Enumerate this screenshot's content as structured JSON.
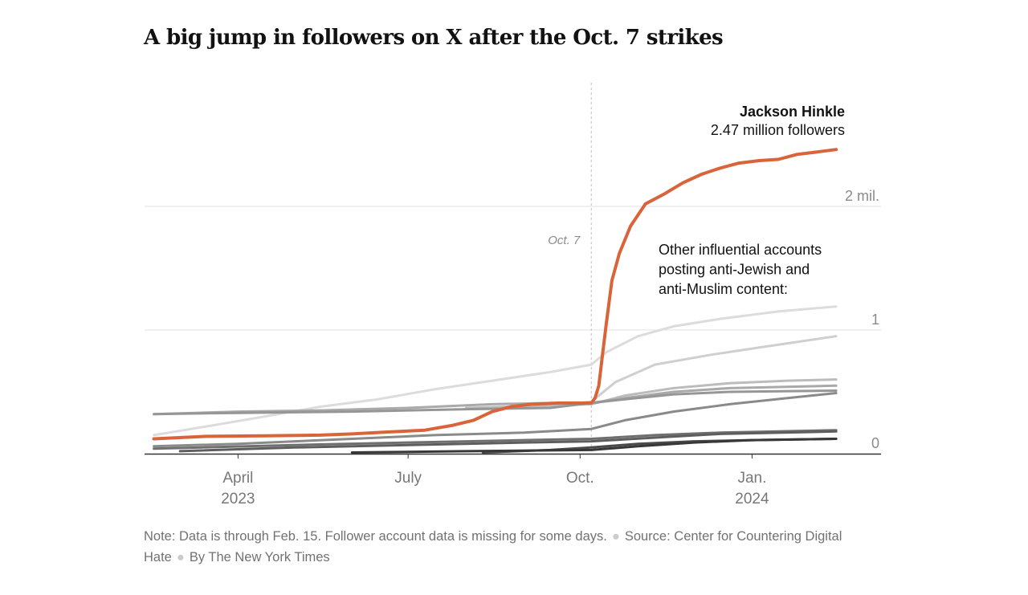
{
  "title": "A big jump in followers on X after the Oct. 7 strikes",
  "footnote": {
    "note": "Note: Data is through Feb. 15. Follower account data is missing for some days.",
    "source": "Source: Center for Countering Digital Hate",
    "credit": "By The New York Times"
  },
  "chart_data": {
    "type": "line",
    "x_domain": [
      "2023-02-10",
      "2024-03-10"
    ],
    "ylim": [
      0,
      2.6
    ],
    "y_unit": "million followers",
    "y_ticks": [
      {
        "value": 0,
        "label": "0"
      },
      {
        "value": 1,
        "label": "1"
      },
      {
        "value": 2,
        "label": "2 mil."
      }
    ],
    "x_ticks": [
      {
        "date": "2023-04-01",
        "label": "April",
        "sublabel": "2023"
      },
      {
        "date": "2023-07-01",
        "label": "July",
        "sublabel": ""
      },
      {
        "date": "2023-10-01",
        "label": "Oct.",
        "sublabel": ""
      },
      {
        "date": "2024-01-01",
        "label": "Jan.",
        "sublabel": "2024"
      }
    ],
    "event_marker": {
      "date": "2023-10-07",
      "label": "Oct. 7"
    },
    "highlight": {
      "name": "Jackson Hinkle",
      "value_label": "2.47 million followers",
      "color": "#d9643a",
      "points": [
        [
          "2023-02-15",
          0.12
        ],
        [
          "2023-03-15",
          0.14
        ],
        [
          "2023-04-15",
          0.145
        ],
        [
          "2023-05-15",
          0.15
        ],
        [
          "2023-06-01",
          0.16
        ],
        [
          "2023-06-20",
          0.175
        ],
        [
          "2023-07-10",
          0.19
        ],
        [
          "2023-07-25",
          0.23
        ],
        [
          "2023-08-05",
          0.27
        ],
        [
          "2023-08-15",
          0.34
        ],
        [
          "2023-08-25",
          0.38
        ],
        [
          "2023-09-05",
          0.4
        ],
        [
          "2023-09-20",
          0.41
        ],
        [
          "2023-10-07",
          0.41
        ],
        [
          "2023-10-09",
          0.45
        ],
        [
          "2023-10-11",
          0.55
        ],
        [
          "2023-10-13",
          0.8
        ],
        [
          "2023-10-15",
          1.05
        ],
        [
          "2023-10-18",
          1.4
        ],
        [
          "2023-10-22",
          1.62
        ],
        [
          "2023-10-28",
          1.84
        ],
        [
          "2023-11-05",
          2.02
        ],
        [
          "2023-11-15",
          2.1
        ],
        [
          "2023-11-25",
          2.19
        ],
        [
          "2023-12-05",
          2.26
        ],
        [
          "2023-12-15",
          2.31
        ],
        [
          "2023-12-25",
          2.35
        ],
        [
          "2024-01-05",
          2.37
        ],
        [
          "2024-01-15",
          2.38
        ],
        [
          "2024-01-25",
          2.42
        ],
        [
          "2024-02-05",
          2.44
        ],
        [
          "2024-02-15",
          2.46
        ]
      ]
    },
    "others_label": "Other influential accounts posting anti-Jewish and anti-Muslim content:",
    "series": [
      {
        "color": "#dcdcdc",
        "points": [
          [
            "2023-02-15",
            0.15
          ],
          [
            "2023-03-15",
            0.22
          ],
          [
            "2023-04-15",
            0.3
          ],
          [
            "2023-05-15",
            0.38
          ],
          [
            "2023-06-15",
            0.44
          ],
          [
            "2023-07-15",
            0.52
          ],
          [
            "2023-08-15",
            0.59
          ],
          [
            "2023-09-15",
            0.66
          ],
          [
            "2023-10-07",
            0.72
          ],
          [
            "2023-10-15",
            0.82
          ],
          [
            "2023-11-01",
            0.95
          ],
          [
            "2023-11-20",
            1.03
          ],
          [
            "2023-12-15",
            1.09
          ],
          [
            "2024-01-15",
            1.15
          ],
          [
            "2024-02-15",
            1.19
          ]
        ]
      },
      {
        "color": "#cfcfcf",
        "points": [
          [
            "2023-08-20",
            0.37
          ],
          [
            "2023-09-20",
            0.39
          ],
          [
            "2023-10-07",
            0.42
          ],
          [
            "2023-10-20",
            0.58
          ],
          [
            "2023-11-10",
            0.72
          ],
          [
            "2023-12-10",
            0.8
          ],
          [
            "2024-01-10",
            0.87
          ],
          [
            "2024-02-15",
            0.95
          ]
        ]
      },
      {
        "color": "#bcbcbc",
        "points": [
          [
            "2023-08-01",
            0.37
          ],
          [
            "2023-09-15",
            0.39
          ],
          [
            "2023-10-07",
            0.4
          ],
          [
            "2023-10-25",
            0.47
          ],
          [
            "2023-11-20",
            0.53
          ],
          [
            "2023-12-20",
            0.57
          ],
          [
            "2024-01-20",
            0.59
          ],
          [
            "2024-02-15",
            0.6
          ]
        ]
      },
      {
        "color": "#a9a9a9",
        "points": [
          [
            "2023-02-15",
            0.32
          ],
          [
            "2023-04-01",
            0.34
          ],
          [
            "2023-05-15",
            0.35
          ],
          [
            "2023-07-01",
            0.37
          ],
          [
            "2023-08-15",
            0.4
          ],
          [
            "2023-09-15",
            0.41
          ],
          [
            "2023-10-07",
            0.41
          ],
          [
            "2023-10-25",
            0.45
          ],
          [
            "2023-11-20",
            0.5
          ],
          [
            "2023-12-20",
            0.53
          ],
          [
            "2024-02-15",
            0.55
          ]
        ]
      },
      {
        "color": "#969696",
        "points": [
          [
            "2023-02-15",
            0.32
          ],
          [
            "2023-04-01",
            0.33
          ],
          [
            "2023-06-01",
            0.34
          ],
          [
            "2023-08-01",
            0.36
          ],
          [
            "2023-09-15",
            0.37
          ],
          [
            "2023-10-07",
            0.41
          ],
          [
            "2023-10-25",
            0.44
          ],
          [
            "2023-11-20",
            0.48
          ],
          [
            "2023-12-20",
            0.5
          ],
          [
            "2024-02-15",
            0.51
          ]
        ]
      },
      {
        "color": "#8a8a8a",
        "points": [
          [
            "2023-02-15",
            0.06
          ],
          [
            "2023-04-01",
            0.08
          ],
          [
            "2023-06-01",
            0.12
          ],
          [
            "2023-07-15",
            0.15
          ],
          [
            "2023-09-01",
            0.17
          ],
          [
            "2023-10-07",
            0.2
          ],
          [
            "2023-10-25",
            0.27
          ],
          [
            "2023-11-20",
            0.34
          ],
          [
            "2023-12-20",
            0.4
          ],
          [
            "2024-01-20",
            0.45
          ],
          [
            "2024-02-15",
            0.49
          ]
        ]
      },
      {
        "color": "#6f6f6f",
        "points": [
          [
            "2023-02-15",
            0.04
          ],
          [
            "2023-05-01",
            0.07
          ],
          [
            "2023-07-01",
            0.09
          ],
          [
            "2023-09-01",
            0.11
          ],
          [
            "2023-10-07",
            0.12
          ],
          [
            "2023-11-10",
            0.15
          ],
          [
            "2023-12-15",
            0.17
          ],
          [
            "2024-02-15",
            0.19
          ]
        ]
      },
      {
        "color": "#5e5e5e",
        "points": [
          [
            "2023-03-01",
            0.02
          ],
          [
            "2023-05-01",
            0.05
          ],
          [
            "2023-07-01",
            0.07
          ],
          [
            "2023-09-01",
            0.09
          ],
          [
            "2023-10-07",
            0.1
          ],
          [
            "2023-11-10",
            0.13
          ],
          [
            "2023-12-15",
            0.16
          ],
          [
            "2024-02-15",
            0.18
          ]
        ]
      },
      {
        "color": "#4a4a4a",
        "points": [
          [
            "2023-08-10",
            0.01
          ],
          [
            "2023-09-15",
            0.03
          ],
          [
            "2023-10-07",
            0.05
          ],
          [
            "2023-11-01",
            0.08
          ],
          [
            "2023-12-01",
            0.1
          ],
          [
            "2024-01-01",
            0.11
          ],
          [
            "2024-02-15",
            0.12
          ]
        ]
      },
      {
        "color": "#383838",
        "points": [
          [
            "2023-06-01",
            0.01
          ],
          [
            "2023-08-01",
            0.02
          ],
          [
            "2023-10-07",
            0.03
          ],
          [
            "2023-11-01",
            0.06
          ],
          [
            "2023-12-01",
            0.09
          ],
          [
            "2024-01-01",
            0.11
          ],
          [
            "2024-02-15",
            0.12
          ]
        ]
      }
    ]
  }
}
